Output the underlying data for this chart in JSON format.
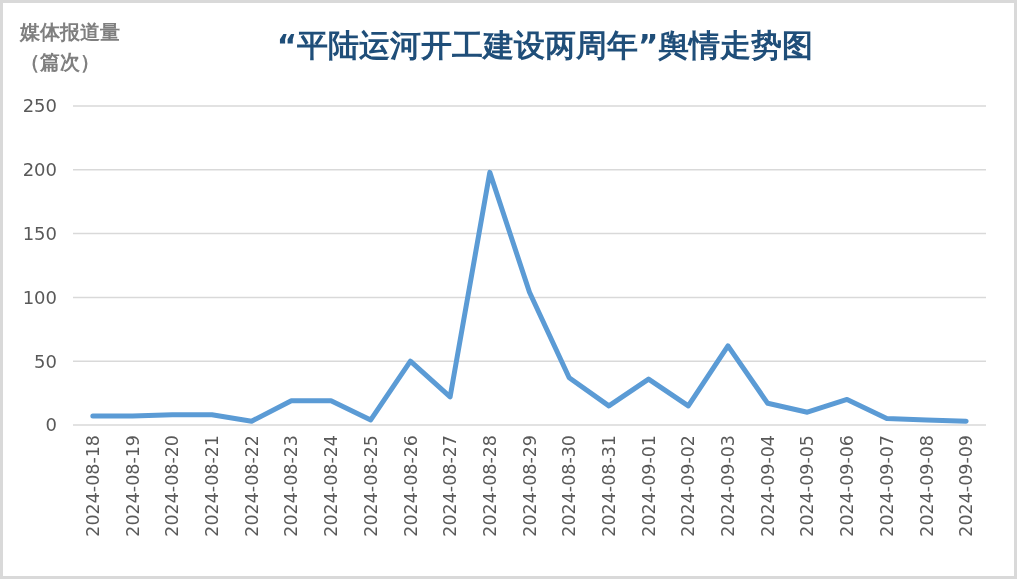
{
  "chart_data": {
    "type": "line",
    "title": "“平陆运河开工建设两周年”舆情走势图",
    "ylabel": "媒体报道量（篇次）",
    "categories": [
      "2024-08-18",
      "2024-08-19",
      "2024-08-20",
      "2024-08-21",
      "2024-08-22",
      "2024-08-23",
      "2024-08-24",
      "2024-08-25",
      "2024-08-26",
      "2024-08-27",
      "2024-08-28",
      "2024-08-29",
      "2024-08-30",
      "2024-08-31",
      "2024-09-01",
      "2024-09-02",
      "2024-09-03",
      "2024-09-04",
      "2024-09-05",
      "2024-09-06",
      "2024-09-07",
      "2024-09-08",
      "2024-09-09"
    ],
    "series": [
      {
        "color": "#5b9bd5",
        "values": [
          7,
          7,
          8,
          8,
          3,
          19,
          19,
          4,
          50,
          22,
          198,
          104,
          37,
          15,
          36,
          15,
          62,
          17,
          10,
          20,
          5,
          4,
          3
        ]
      }
    ],
    "ylim": [
      0,
      250
    ],
    "yticks": [
      0,
      50,
      100,
      150,
      200,
      250
    ],
    "grid": "y",
    "marker": "none",
    "line_style": "solid"
  }
}
